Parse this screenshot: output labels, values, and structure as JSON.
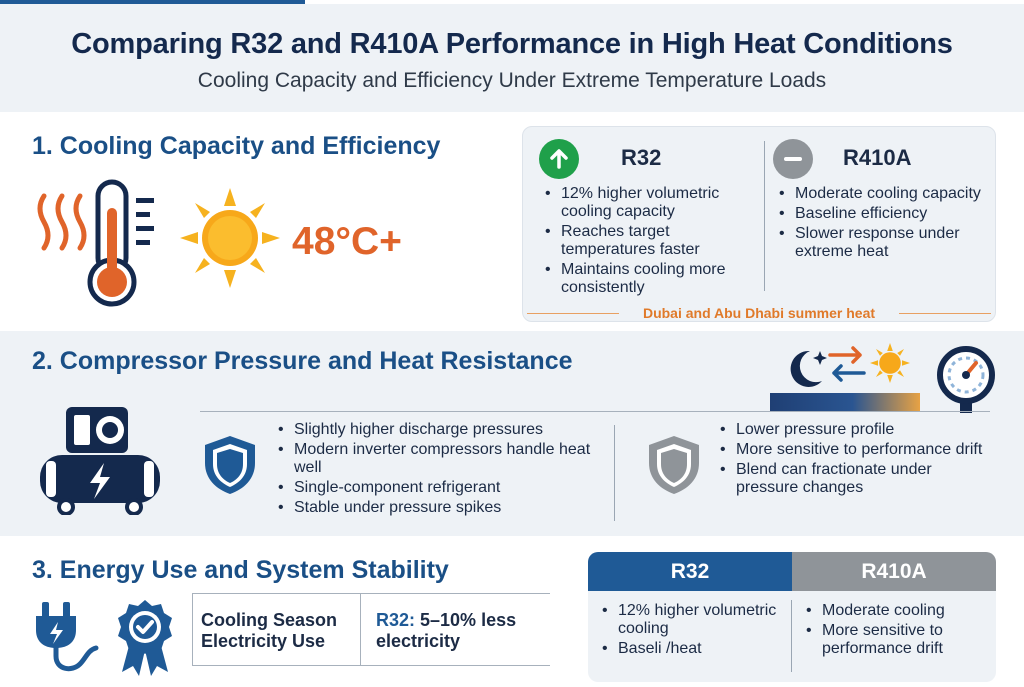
{
  "header": {
    "title": "Comparing R32 and R410A Performance in High Heat Conditions",
    "subtitle": "Cooling Capacity and Efficiency Under Extreme Temperature Loads"
  },
  "section1": {
    "title": "1. Cooling Capacity and Efficiency",
    "temperature": "48°C+",
    "r32": {
      "label": "R32",
      "bullets": [
        "12% higher volumetric cooling capacity",
        "Reaches target temperatures faster",
        "Maintains cooling more consistently"
      ]
    },
    "r410a": {
      "label": "R410A",
      "bullets": [
        "Moderate cooling capacity",
        "Baseline efficiency",
        "Slower response under extreme heat"
      ]
    },
    "note": "Dubai and Abu Dhabi summer heat"
  },
  "section2": {
    "title": "2. Compressor Pressure and Heat Resistance",
    "r32_bullets": [
      "Slightly higher discharge pressures",
      "Modern inverter compressors handle heat well",
      "Single-component refrigerant",
      "Stable under pressure spikes"
    ],
    "r410a_bullets": [
      "Lower pressure profile",
      "More sensitive to performance drift",
      "Blend can fractionate under pressure changes"
    ]
  },
  "section3": {
    "title": "3. Energy Use and System Stability",
    "row_label": "Cooling Season Electricity Use",
    "row_value_prefix": "R32:",
    "row_value_rest": " 5–10% less electricity",
    "table": {
      "r32_head": "R32",
      "r410a_head": "R410A",
      "r32_bullets": [
        "12% higher volumetric  cooling",
        "Baseli /heat"
      ],
      "r410a_bullets": [
        "Moderate cooling",
        "More sensitive to performance drift"
      ]
    }
  },
  "colors": {
    "title_blue": "#14294d",
    "section_blue": "#1a4f86",
    "accent_orange": "#e0642a",
    "green": "#1fa04a",
    "gray": "#8f9499",
    "table_blue": "#1f5a96"
  },
  "icons": [
    "heat-waves-icon",
    "thermometer-icon",
    "sun-icon",
    "arrow-up-icon",
    "minus-icon",
    "moon-icon",
    "swap-arrows-icon",
    "pressure-gauge-icon",
    "compressor-icon",
    "shield-icon",
    "plug-icon",
    "badge-check-icon"
  ]
}
